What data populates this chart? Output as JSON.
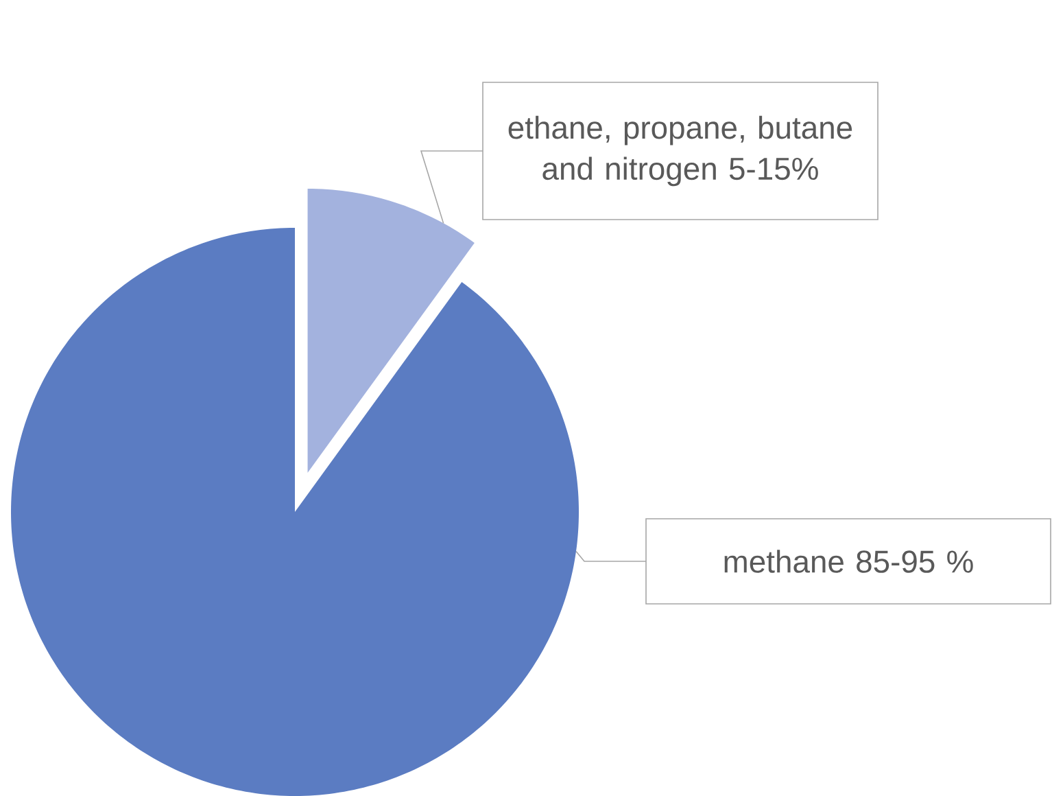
{
  "chart_data": {
    "type": "pie",
    "categories": [
      "ethane, propane, butane and nitrogen 5-15%",
      "methane 85-95 %"
    ],
    "values": [
      10,
      90
    ],
    "colors": [
      "#a3b2de",
      "#5b7cc2"
    ]
  }
}
